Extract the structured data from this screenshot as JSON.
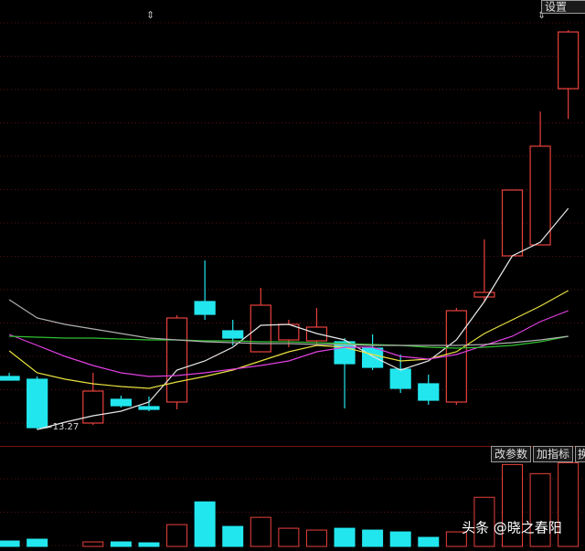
{
  "chart_data": {
    "type": "candlestick",
    "x": [
      0,
      1,
      2,
      3,
      4,
      5,
      6,
      7,
      8,
      9,
      10,
      11,
      12,
      13,
      14,
      15,
      16,
      17,
      18,
      19,
      20
    ],
    "open": [
      14.43,
      14.37,
      null,
      13.41,
      13.93,
      13.77,
      13.87,
      16.07,
      15.43,
      14.97,
      15.23,
      15.21,
      15.19,
      15.05,
      14.59,
      14.27,
      13.87,
      16.17,
      17.07,
      17.31,
      20.73
    ],
    "high": [
      14.51,
      14.43,
      null,
      14.51,
      14.01,
      13.99,
      15.77,
      16.97,
      15.67,
      16.37,
      15.67,
      15.93,
      15.27,
      15.35,
      14.91,
      14.47,
      15.93,
      17.43,
      18.51,
      20.23,
      22.01
    ],
    "low": [
      14.35,
      13.27,
      null,
      13.37,
      13.75,
      13.67,
      13.71,
      15.67,
      15.11,
      14.97,
      15.07,
      15.11,
      13.73,
      14.57,
      14.07,
      13.81,
      13.81,
      16.07,
      17.07,
      17.31,
      20.07
    ],
    "close": [
      14.35,
      13.31,
      null,
      14.11,
      13.79,
      13.71,
      15.71,
      15.79,
      15.27,
      15.99,
      15.57,
      15.51,
      14.71,
      14.63,
      14.17,
      13.91,
      15.87,
      16.27,
      18.51,
      19.47,
      21.97
    ],
    "up_color": "#e8413c",
    "down_color": "#22e6ee",
    "ylim": [
      12.9,
      22.6
    ],
    "xlim": [
      -0.33,
      20.6
    ],
    "grid": true,
    "series": [
      {
        "color": "#e8e8e8",
        "values": [
          null,
          13.27,
          13.43,
          13.57,
          13.67,
          13.87,
          14.57,
          14.77,
          15.07,
          15.55,
          15.57,
          15.37,
          15.23,
          14.87,
          14.57,
          14.77,
          15.23,
          16.07,
          17.07,
          17.37,
          18.11
        ]
      },
      {
        "color": "#e8e040",
        "values": [
          14.99,
          14.51,
          14.37,
          14.27,
          14.21,
          14.17,
          14.31,
          14.43,
          14.57,
          14.77,
          14.97,
          15.11,
          15.07,
          14.91,
          14.77,
          14.81,
          14.97,
          15.37,
          15.67,
          15.97,
          16.31
        ]
      },
      {
        "color": "#e040e0",
        "values": [
          15.35,
          15.11,
          14.87,
          14.67,
          14.51,
          14.43,
          14.45,
          14.51,
          14.59,
          14.67,
          14.77,
          14.97,
          15.07,
          15.07,
          14.87,
          14.81,
          14.91,
          15.11,
          15.31,
          15.63,
          15.87
        ]
      },
      {
        "color": "#30c030",
        "values": [
          15.31,
          15.29,
          15.27,
          15.27,
          15.25,
          15.23,
          15.23,
          15.21,
          15.21,
          15.19,
          15.19,
          15.17,
          15.15,
          15.13,
          15.11,
          15.07,
          15.05,
          15.07,
          15.11,
          15.19,
          15.31
        ]
      },
      {
        "color": "#b0b0b0",
        "values": [
          16.11,
          15.71,
          15.57,
          15.47,
          15.37,
          15.27,
          15.23,
          15.19,
          15.17,
          15.15,
          15.15,
          15.13,
          15.13,
          15.11,
          15.11,
          15.11,
          15.11,
          15.13,
          15.17,
          15.23,
          15.31
        ]
      }
    ],
    "volume": {
      "values": [
        6,
        8,
        null,
        5,
        5,
        4,
        24,
        49,
        22,
        32,
        20,
        18,
        20,
        18,
        16,
        10,
        16,
        54,
        90,
        80,
        92
      ],
      "ylim": [
        0,
        110
      ]
    }
  },
  "ui": {
    "settings_button": "设置",
    "buttons": [
      "改参数",
      "加指标",
      "换"
    ],
    "watermark": "头条 @晓之春阳"
  }
}
